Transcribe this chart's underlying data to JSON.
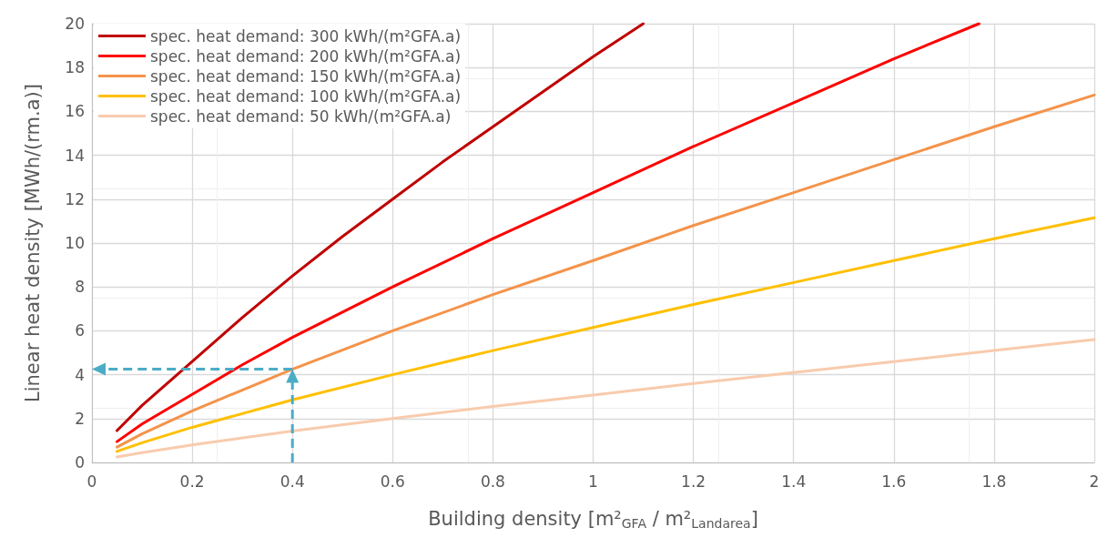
{
  "chart_data": {
    "type": "line",
    "xlabel": "Building density [m²$_{GFA}$ / m²$_{Landarea}$]",
    "ylabel": "Linear heat density [MWh/(rm.a)]",
    "series": [
      {
        "name": "spec. heat demand: 300 kWh/(m²GFA.a)",
        "color": "#c00000",
        "x": [
          0.05,
          0.1,
          0.2,
          0.3,
          0.4,
          0.5,
          0.6,
          0.7,
          0.8,
          0.9,
          1.0,
          1.1
        ],
        "values": [
          1.45,
          2.6,
          4.6,
          6.6,
          8.5,
          10.3,
          12.0,
          13.7,
          15.3,
          16.9,
          18.5,
          20.0
        ]
      },
      {
        "name": "spec. heat demand: 200 kWh/(m²GFA.a)",
        "color": "#ff0000",
        "x": [
          0.05,
          0.1,
          0.2,
          0.3,
          0.4,
          0.6,
          0.8,
          1.0,
          1.2,
          1.4,
          1.6,
          1.77
        ],
        "values": [
          0.95,
          1.75,
          3.1,
          4.45,
          5.7,
          8.0,
          10.2,
          12.3,
          14.4,
          16.4,
          18.4,
          20.0
        ]
      },
      {
        "name": "spec. heat demand: 150 kWh/(m²GFA.a)",
        "color": "#f4934a",
        "x": [
          0.05,
          0.1,
          0.2,
          0.4,
          0.6,
          0.8,
          1.0,
          1.2,
          1.4,
          1.6,
          1.8,
          2.0
        ],
        "values": [
          0.7,
          1.3,
          2.35,
          4.25,
          6.0,
          7.65,
          9.2,
          10.8,
          12.3,
          13.8,
          15.3,
          16.75
        ]
      },
      {
        "name": "spec. heat demand: 100 kWh/(m²GFA.a)",
        "color": "#ffc000",
        "x": [
          0.05,
          0.1,
          0.2,
          0.4,
          0.6,
          0.8,
          1.0,
          1.2,
          1.4,
          1.6,
          1.8,
          2.0
        ],
        "values": [
          0.5,
          0.9,
          1.6,
          2.85,
          4.0,
          5.1,
          6.15,
          7.2,
          8.2,
          9.2,
          10.2,
          11.15
        ]
      },
      {
        "name": "spec. heat demand: 50 kWh/(m²GFA.a)",
        "color": "#f8cbad",
        "x": [
          0.05,
          0.1,
          0.2,
          0.4,
          0.6,
          0.8,
          1.0,
          1.2,
          1.4,
          1.6,
          1.8,
          2.0
        ],
        "values": [
          0.25,
          0.45,
          0.8,
          1.43,
          2.0,
          2.55,
          3.07,
          3.6,
          4.1,
          4.6,
          5.1,
          5.6
        ]
      }
    ],
    "ref_lines": [
      {
        "axis": "x",
        "value": 0.4,
        "color": "#4bacc6",
        "line_style": "dashed"
      },
      {
        "axis": "y",
        "value": 4.25,
        "color": "#4bacc6",
        "line_style": "dashed"
      }
    ],
    "xlim": [
      0,
      2
    ],
    "xticks": [
      0,
      0.2,
      0.4,
      0.6,
      0.8,
      1,
      1.2,
      1.4,
      1.6,
      1.8,
      2
    ],
    "ylim": [
      0,
      20
    ],
    "yticks": [
      0,
      2,
      4,
      6,
      8,
      10,
      12,
      14,
      16,
      18,
      20
    ],
    "grid": true,
    "legend": "top left",
    "marker": "none",
    "line_style": "solid"
  }
}
